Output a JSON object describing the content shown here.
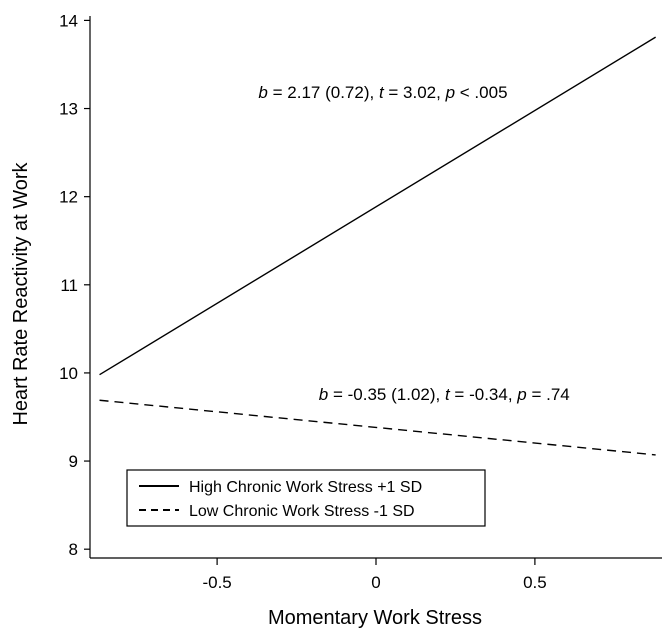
{
  "chart_data": {
    "type": "line",
    "title": "",
    "xlabel": "Momentary Work Stress",
    "ylabel": "Heart Rate Reactivity at Work",
    "xlim": [
      -0.9,
      0.9
    ],
    "ylim": [
      7.9,
      14.05
    ],
    "xticks": [
      -0.5,
      0,
      0.5
    ],
    "xtick_labels": [
      "-0.5",
      "0",
      "0.5"
    ],
    "yticks": [
      8,
      9,
      10,
      11,
      12,
      13,
      14
    ],
    "ytick_labels": [
      "8",
      "9",
      "10",
      "11",
      "12",
      "13",
      "14"
    ],
    "grid": false,
    "legend_position": "bottom-left",
    "series": [
      {
        "name": "High Chronic Work Stress +1 SD",
        "style": "solid",
        "color": "#000000",
        "x": [
          -0.87,
          0.88
        ],
        "y": [
          9.98,
          13.81
        ]
      },
      {
        "name": "Low Chronic Work Stress -1 SD",
        "style": "dashed",
        "color": "#000000",
        "x": [
          -0.87,
          0.88
        ],
        "y": [
          9.69,
          9.07
        ]
      }
    ],
    "annotations": [
      {
        "series": 0,
        "x": -0.37,
        "y": 13.12,
        "parts": [
          {
            "t": "b",
            "it": true
          },
          {
            "t": " = 2.17 (0.72), "
          },
          {
            "t": "t",
            "it": true
          },
          {
            "t": " = 3.02, "
          },
          {
            "t": "p",
            "it": true
          },
          {
            "t": " < .005"
          }
        ]
      },
      {
        "series": 1,
        "x": -0.18,
        "y": 9.69,
        "parts": [
          {
            "t": "b",
            "it": true
          },
          {
            "t": " = -0.35 (1.02), "
          },
          {
            "t": "t",
            "it": true
          },
          {
            "t": " = -0.34, "
          },
          {
            "t": "p",
            "it": true
          },
          {
            "t": " = .74"
          }
        ]
      }
    ]
  }
}
